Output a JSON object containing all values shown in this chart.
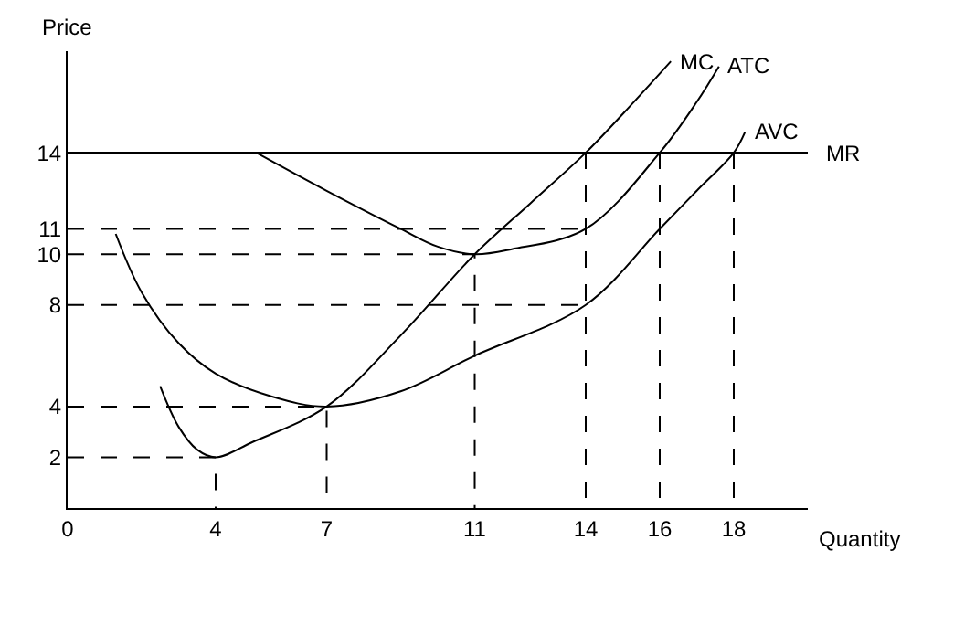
{
  "chart_data": {
    "type": "line",
    "xlabel": "Quantity",
    "ylabel": "Price",
    "xlim": [
      0,
      20
    ],
    "ylim": [
      0,
      18
    ],
    "xticks": [
      0,
      4,
      7,
      11,
      14,
      16,
      18
    ],
    "yticks": [
      2,
      4,
      8,
      10,
      11,
      14
    ],
    "legend": false,
    "marker": "none",
    "ref_lines": [
      {
        "axis": "y",
        "value": 14,
        "label": "MR",
        "color": "#000000",
        "line_style": "solid"
      }
    ],
    "series": [
      {
        "name": "MC",
        "color": "#000000",
        "line_style": "solid",
        "x": [
          2.5,
          3,
          3.5,
          4,
          5,
          7,
          9,
          11,
          12.5,
          14,
          15.3,
          16.3
        ],
        "values": [
          4.8,
          3.2,
          2.3,
          2,
          2.6,
          4,
          6.8,
          10,
          12,
          14,
          16,
          17.6
        ]
      },
      {
        "name": "ATC",
        "color": "#000000",
        "line_style": "solid",
        "x": [
          5.1,
          7,
          9,
          10,
          11,
          12,
          14,
          16,
          17,
          17.6
        ],
        "values": [
          14,
          12.5,
          11,
          10.3,
          10,
          10.2,
          11,
          14,
          16,
          17.4
        ]
      },
      {
        "name": "AVC",
        "color": "#000000",
        "line_style": "solid",
        "x": [
          1.3,
          2,
          3,
          4,
          5.5,
          7,
          9,
          11,
          14,
          16,
          17,
          18,
          18.3
        ],
        "values": [
          10.8,
          8.5,
          6.5,
          5.3,
          4.4,
          4,
          4.6,
          6,
          8,
          11,
          12.5,
          14,
          14.8
        ]
      },
      {
        "color": "#000000",
        "line_style": "dashed",
        "x": [
          0,
          4,
          4
        ],
        "values": [
          2,
          2,
          0
        ]
      },
      {
        "color": "#000000",
        "line_style": "dashed",
        "x": [
          0,
          7,
          7
        ],
        "values": [
          4,
          4,
          0
        ]
      },
      {
        "color": "#000000",
        "line_style": "dashed",
        "x": [
          0,
          11,
          11
        ],
        "values": [
          10,
          10,
          0
        ]
      },
      {
        "color": "#000000",
        "line_style": "dashed",
        "x": [
          0,
          14
        ],
        "values": [
          11,
          11
        ]
      },
      {
        "color": "#000000",
        "line_style": "dashed",
        "x": [
          0,
          14
        ],
        "values": [
          8,
          8
        ]
      },
      {
        "color": "#000000",
        "line_style": "dashed",
        "x": [
          14,
          14
        ],
        "values": [
          14,
          0
        ]
      },
      {
        "color": "#000000",
        "line_style": "dashed",
        "x": [
          16,
          16
        ],
        "values": [
          14,
          0
        ]
      },
      {
        "color": "#000000",
        "line_style": "dashed",
        "x": [
          18,
          18
        ],
        "values": [
          14,
          0
        ]
      }
    ]
  }
}
